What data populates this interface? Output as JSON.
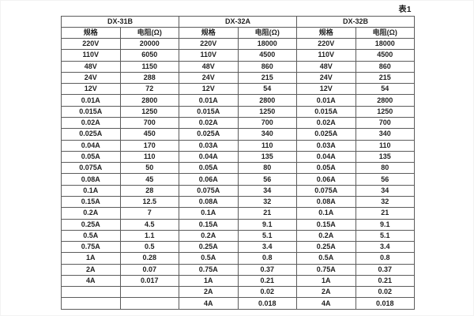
{
  "page": {
    "table_caption": "表1"
  },
  "table": {
    "column_headers": {
      "spec": "规格",
      "resistance": "电阻(Ω)"
    },
    "groups": [
      {
        "name": "DX-31B"
      },
      {
        "name": "DX-32A"
      },
      {
        "name": "DX-32B"
      }
    ],
    "rows": [
      [
        "220V",
        "20000",
        "220V",
        "18000",
        "220V",
        "18000"
      ],
      [
        "110V",
        "6050",
        "110V",
        "4500",
        "110V",
        "4500"
      ],
      [
        "48V",
        "1150",
        "48V",
        "860",
        "48V",
        "860"
      ],
      [
        "24V",
        "288",
        "24V",
        "215",
        "24V",
        "215"
      ],
      [
        "12V",
        "72",
        "12V",
        "54",
        "12V",
        "54"
      ],
      [
        "0.01A",
        "2800",
        "0.01A",
        "2800",
        "0.01A",
        "2800"
      ],
      [
        "0.015A",
        "1250",
        "0.015A",
        "1250",
        "0.015A",
        "1250"
      ],
      [
        "0.02A",
        "700",
        "0.02A",
        "700",
        "0.02A",
        "700"
      ],
      [
        "0.025A",
        "450",
        "0.025A",
        "340",
        "0.025A",
        "340"
      ],
      [
        "0.04A",
        "170",
        "0.03A",
        "110",
        "0.03A",
        "110"
      ],
      [
        "0.05A",
        "110",
        "0.04A",
        "135",
        "0.04A",
        "135"
      ],
      [
        "0.075A",
        "50",
        "0.05A",
        "80",
        "0.05A",
        "80"
      ],
      [
        "0.08A",
        "45",
        "0.06A",
        "56",
        "0.06A",
        "56"
      ],
      [
        "0.1A",
        "28",
        "0.075A",
        "34",
        "0.075A",
        "34"
      ],
      [
        "0.15A",
        "12.5",
        "0.08A",
        "32",
        "0.08A",
        "32"
      ],
      [
        "0.2A",
        "7",
        "0.1A",
        "21",
        "0.1A",
        "21"
      ],
      [
        "0.25A",
        "4.5",
        "0.15A",
        "9.1",
        "0.15A",
        "9.1"
      ],
      [
        "0.5A",
        "1.1",
        "0.2A",
        "5.1",
        "0.2A",
        "5.1"
      ],
      [
        "0.75A",
        "0.5",
        "0.25A",
        "3.4",
        "0.25A",
        "3.4"
      ],
      [
        "1A",
        "0.28",
        "0.5A",
        "0.8",
        "0.5A",
        "0.8"
      ],
      [
        "2A",
        "0.07",
        "0.75A",
        "0.37",
        "0.75A",
        "0.37"
      ],
      [
        "4A",
        "0.017",
        "1A",
        "0.21",
        "1A",
        "0.21"
      ],
      [
        "",
        "",
        "2A",
        "0.02",
        "2A",
        "0.02"
      ],
      [
        "",
        "",
        "4A",
        "0.018",
        "4A",
        "0.018"
      ]
    ]
  }
}
